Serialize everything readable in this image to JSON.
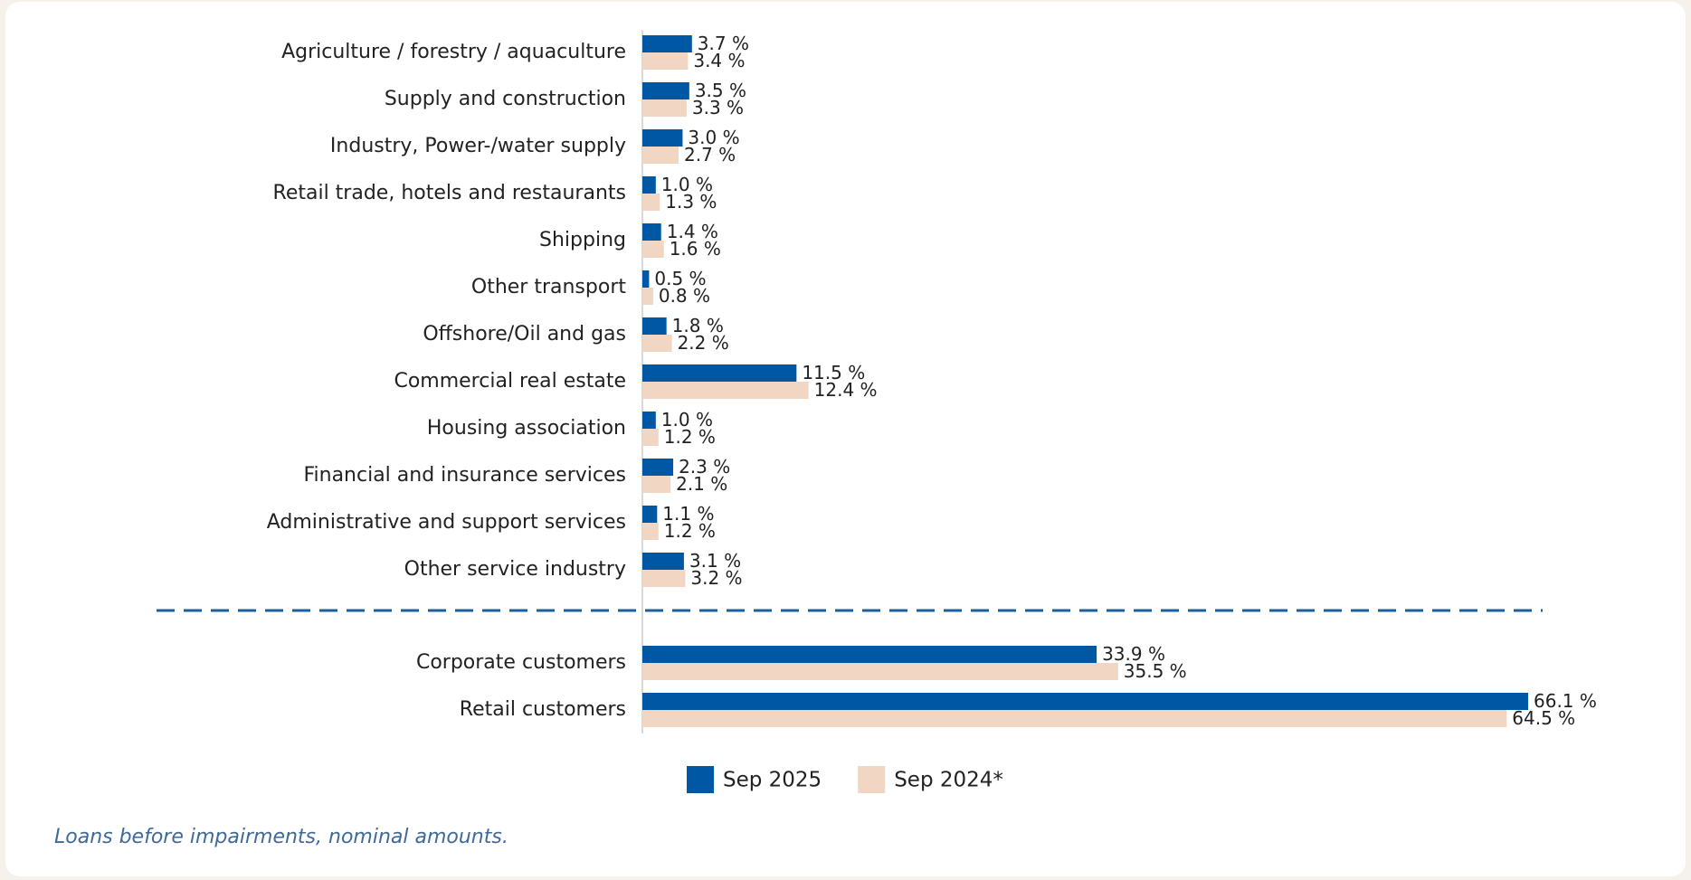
{
  "chart_data": {
    "type": "bar",
    "orientation": "horizontal",
    "categories": [
      "Agriculture / forestry / aquaculture",
      "Supply and construction",
      "Industry, Power-/water supply",
      "Retail trade, hotels and restaurants",
      "Shipping",
      "Other transport",
      "Offshore/Oil and gas",
      "Commercial real estate",
      "Housing association",
      "Financial and insurance services",
      "Administrative and support services",
      "Other service industry",
      "Corporate customers",
      "Retail customers"
    ],
    "series": [
      {
        "name": "Sep 2025",
        "color": "#0057a3",
        "values": [
          3.7,
          3.5,
          3.0,
          1.0,
          1.4,
          0.5,
          1.8,
          11.5,
          1.0,
          2.3,
          1.1,
          3.1,
          33.9,
          66.1
        ],
        "value_labels": [
          "3.7 %",
          "3.5 %",
          "3.0 %",
          "1.0 %",
          "1.4 %",
          "0.5 %",
          "1.8 %",
          "11.5 %",
          "1.0 %",
          "2.3 %",
          "1.1 %",
          "3.1 %",
          "33.9 %",
          "66.1 %"
        ]
      },
      {
        "name": "Sep 2024*",
        "color": "#f2d6c4",
        "values": [
          3.4,
          3.3,
          2.7,
          1.3,
          1.6,
          0.8,
          2.2,
          12.4,
          1.2,
          2.1,
          1.2,
          3.2,
          35.5,
          64.5
        ],
        "value_labels": [
          "3.4 %",
          "3.3 %",
          "2.7 %",
          "1.3 %",
          "1.6 %",
          "0.8 %",
          "2.2 %",
          "12.4 %",
          "1.2 %",
          "2.1 %",
          "1.2 %",
          "3.2 %",
          "35.5 %",
          "64.5 %"
        ]
      }
    ],
    "footnote": "Loans before impairments, nominal amounts."
  }
}
